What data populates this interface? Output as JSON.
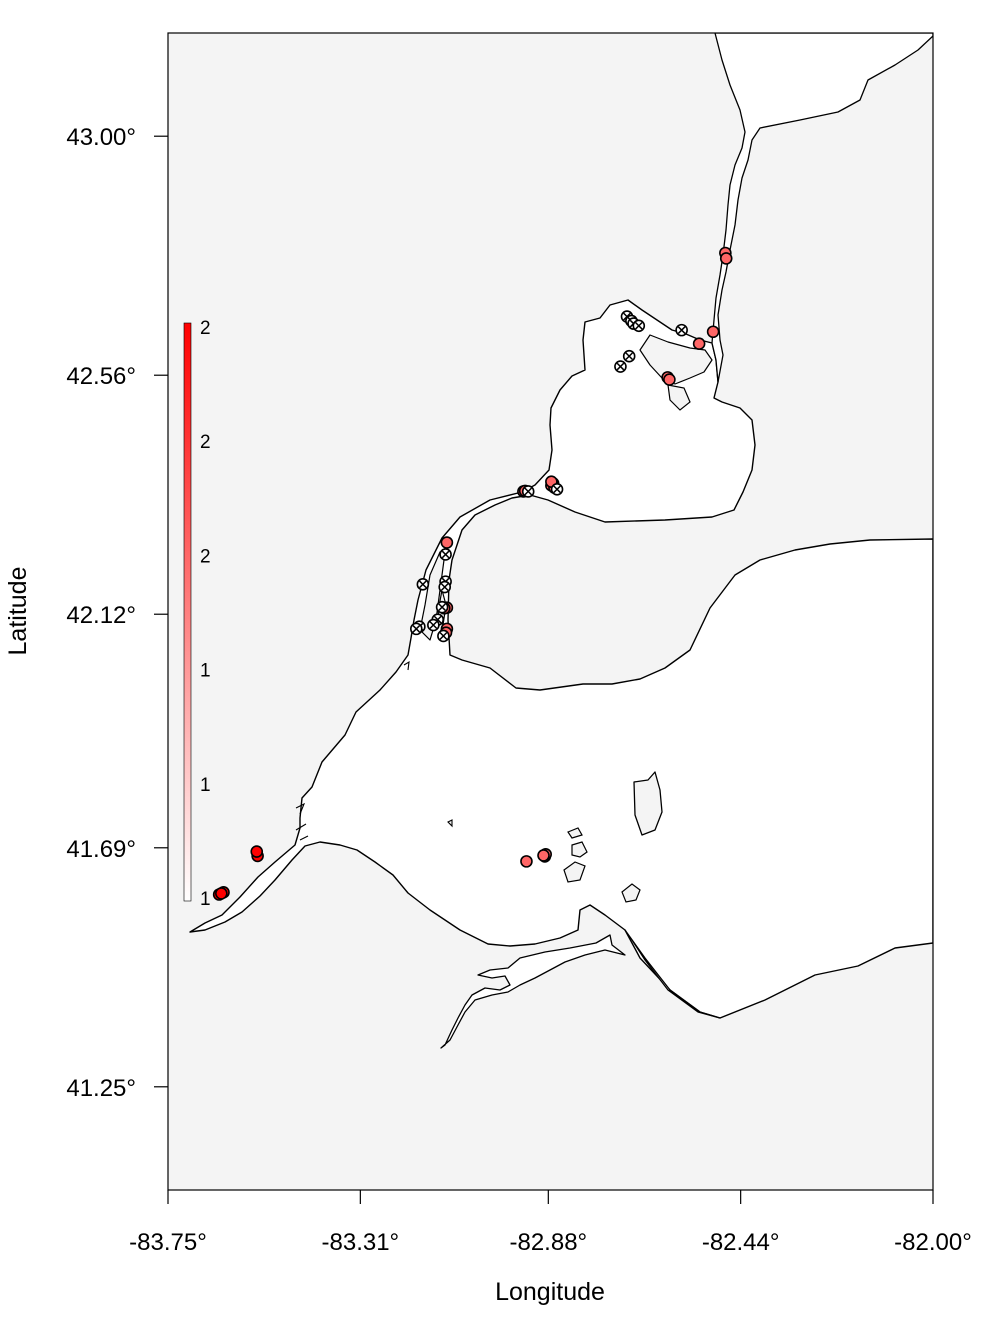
{
  "map": {
    "xlabel": "Longitude",
    "ylabel": "Latitude",
    "xlim": [
      -83.75,
      -82.0
    ],
    "ylim": [
      41.06,
      43.19
    ],
    "x_ticks": [
      {
        "value": -83.75,
        "label": "-83.75°"
      },
      {
        "value": -83.31,
        "label": "-83.31°"
      },
      {
        "value": -82.88,
        "label": "-82.88°"
      },
      {
        "value": -82.44,
        "label": "-82.44°"
      },
      {
        "value": -82.0,
        "label": "-82.00°"
      }
    ],
    "y_ticks": [
      {
        "value": 43.0,
        "label": "43.00°"
      },
      {
        "value": 42.56,
        "label": "42.56°"
      },
      {
        "value": 42.12,
        "label": "42.12°"
      },
      {
        "value": 41.69,
        "label": "41.69°"
      },
      {
        "value": 41.25,
        "label": "41.25°"
      }
    ],
    "colors": {
      "land": "#f4f4f4",
      "water": "#ffffff",
      "coast": "#000000",
      "scale_low": "#ffffff",
      "scale_high": "#ff0000"
    },
    "legend": {
      "placement": "left inside map",
      "labels": [
        "2",
        "2",
        "2",
        "1",
        "1",
        "1"
      ]
    },
    "sites": [
      {
        "lon": -83.623,
        "lat": 41.608,
        "level": 1.0,
        "type": "value"
      },
      {
        "lon": -83.633,
        "lat": 41.604,
        "level": 1.0,
        "type": "value"
      },
      {
        "lon": -83.628,
        "lat": 41.606,
        "level": 1.0,
        "type": "value"
      },
      {
        "lon": -83.545,
        "lat": 41.675,
        "level": 1.0,
        "type": "value"
      },
      {
        "lon": -83.547,
        "lat": 41.683,
        "level": 1.0,
        "type": "value"
      },
      {
        "lon": -82.93,
        "lat": 41.665,
        "level": 0.6,
        "type": "value"
      },
      {
        "lon": -82.888,
        "lat": 41.674,
        "level": 0.6,
        "type": "value"
      },
      {
        "lon": -82.886,
        "lat": 41.678,
        "level": 0.6,
        "type": "value"
      },
      {
        "lon": -82.891,
        "lat": 41.676,
        "level": 0.6,
        "type": "value"
      },
      {
        "lon": -83.112,
        "lat": 42.252,
        "level": 0.6,
        "type": "value"
      },
      {
        "lon": -83.112,
        "lat": 42.132,
        "level": 0.6,
        "type": "value"
      },
      {
        "lon": -83.118,
        "lat": 42.131,
        "level": 0.6,
        "type": "value"
      },
      {
        "lon": -83.112,
        "lat": 42.093,
        "level": 0.6,
        "type": "value"
      },
      {
        "lon": -83.114,
        "lat": 42.086,
        "level": 0.6,
        "type": "value"
      },
      {
        "lon": -82.937,
        "lat": 42.346,
        "level": 0.6,
        "type": "value"
      },
      {
        "lon": -82.933,
        "lat": 42.347,
        "level": 0.6,
        "type": "value"
      },
      {
        "lon": -82.873,
        "lat": 42.357,
        "level": 0.6,
        "type": "value"
      },
      {
        "lon": -82.869,
        "lat": 42.361,
        "level": 0.6,
        "type": "value"
      },
      {
        "lon": -82.866,
        "lat": 42.353,
        "level": 0.6,
        "type": "value"
      },
      {
        "lon": -82.873,
        "lat": 42.364,
        "level": 0.6,
        "type": "value"
      },
      {
        "lon": -82.607,
        "lat": 42.556,
        "level": 0.6,
        "type": "value"
      },
      {
        "lon": -82.603,
        "lat": 42.552,
        "level": 0.6,
        "type": "value"
      },
      {
        "lon": -82.535,
        "lat": 42.618,
        "level": 0.6,
        "type": "value"
      },
      {
        "lon": -82.503,
        "lat": 42.64,
        "level": 0.6,
        "type": "value"
      },
      {
        "lon": -82.475,
        "lat": 42.785,
        "level": 0.6,
        "type": "value"
      },
      {
        "lon": -82.473,
        "lat": 42.775,
        "level": 0.6,
        "type": "value"
      },
      {
        "lon": -83.115,
        "lat": 42.23,
        "level": null,
        "type": "missing"
      },
      {
        "lon": -83.115,
        "lat": 42.18,
        "level": null,
        "type": "missing"
      },
      {
        "lon": -83.117,
        "lat": 42.17,
        "level": null,
        "type": "missing"
      },
      {
        "lon": -83.167,
        "lat": 42.175,
        "level": null,
        "type": "missing"
      },
      {
        "lon": -83.123,
        "lat": 42.133,
        "level": null,
        "type": "missing"
      },
      {
        "lon": -83.133,
        "lat": 42.11,
        "level": null,
        "type": "missing"
      },
      {
        "lon": -83.143,
        "lat": 42.1,
        "level": null,
        "type": "missing"
      },
      {
        "lon": -83.175,
        "lat": 42.097,
        "level": null,
        "type": "missing"
      },
      {
        "lon": -83.182,
        "lat": 42.093,
        "level": null,
        "type": "missing"
      },
      {
        "lon": -83.12,
        "lat": 42.08,
        "level": null,
        "type": "missing"
      },
      {
        "lon": -82.926,
        "lat": 42.346,
        "level": null,
        "type": "missing"
      },
      {
        "lon": -82.86,
        "lat": 42.35,
        "level": null,
        "type": "missing"
      },
      {
        "lon": -82.7,
        "lat": 42.668,
        "level": null,
        "type": "missing"
      },
      {
        "lon": -82.69,
        "lat": 42.66,
        "level": null,
        "type": "missing"
      },
      {
        "lon": -82.685,
        "lat": 42.655,
        "level": null,
        "type": "missing"
      },
      {
        "lon": -82.673,
        "lat": 42.651,
        "level": null,
        "type": "missing"
      },
      {
        "lon": -82.575,
        "lat": 42.643,
        "level": null,
        "type": "missing"
      },
      {
        "lon": -82.695,
        "lat": 42.595,
        "level": null,
        "type": "missing"
      },
      {
        "lon": -82.715,
        "lat": 42.576,
        "level": null,
        "type": "missing"
      }
    ]
  }
}
